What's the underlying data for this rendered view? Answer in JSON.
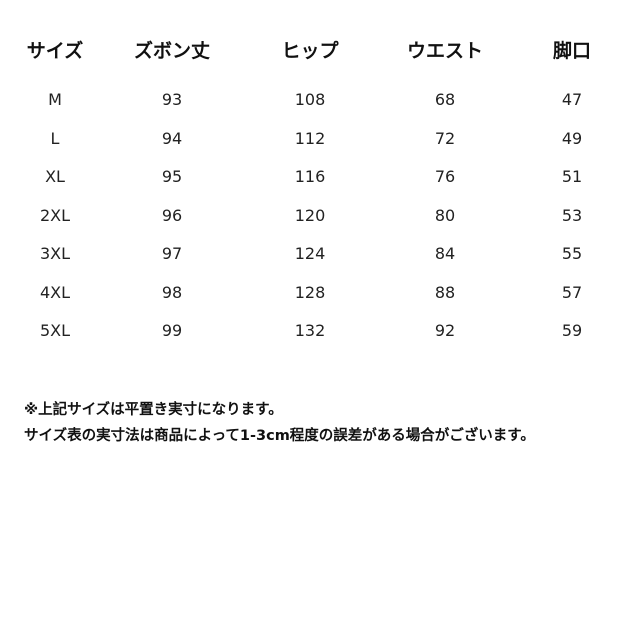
{
  "headers": [
    "サイズ",
    "ズボン丈",
    "ヒップ",
    "ウエスト",
    "脚口"
  ],
  "rows": [
    [
      "M",
      "93",
      "108",
      "68",
      "47"
    ],
    [
      "L",
      "94",
      "112",
      "72",
      "49"
    ],
    [
      "XL",
      "95",
      "116",
      "76",
      "51"
    ],
    [
      "2XL",
      "96",
      "120",
      "80",
      "53"
    ],
    [
      "3XL",
      "97",
      "124",
      "84",
      "55"
    ],
    [
      "4XL",
      "98",
      "128",
      "88",
      "57"
    ],
    [
      "5XL",
      "99",
      "132",
      "92",
      "59"
    ]
  ],
  "notes": [
    "※上記サイズは平置き実寸になります。",
    "サイズ表の実寸法は商品によって1-3cm程度の誤差がある場合がございます。"
  ]
}
